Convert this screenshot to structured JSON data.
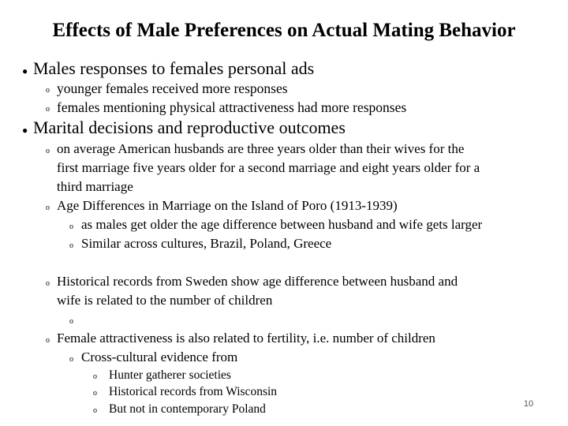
{
  "title": "Effects of Male Preferences on Actual Mating Behavior",
  "bullets": {
    "b1": "Males responses to females personal ads",
    "b1_1": "younger females received more responses",
    "b1_2": "females mentioning physical attractiveness had more responses",
    "b2": "Marital decisions and reproductive outcomes",
    "b2_1_line1": "on average American husbands are three years older than their wives for the",
    "b2_1_line2": "first marriage five years older for a second marriage and eight years older for a",
    "b2_1_line3": "third marriage",
    "b2_2": "Age Differences in Marriage on the Island of Poro (1913-1939)",
    "b2_2_1": "as males get older the age difference between husband and wife gets larger",
    "b2_2_2": "Similar across cultures, Brazil, Poland, Greece",
    "b2_3_line1": "Historical records from Sweden show age difference between husband and",
    "b2_3_line2": "wife is related to the number of children",
    "b2_4": "Female attractiveness is also related to fertility, i.e. number of children",
    "b2_4_1": "Cross-cultural evidence from",
    "b2_4_1_1": "Hunter gatherer societies",
    "b2_4_1_2": "Historical records from Wisconsin",
    "b2_4_1_3": "But not in contemporary Poland"
  },
  "bullet_symbols": {
    "level1": "●",
    "level2": "o"
  },
  "page_number": "10"
}
